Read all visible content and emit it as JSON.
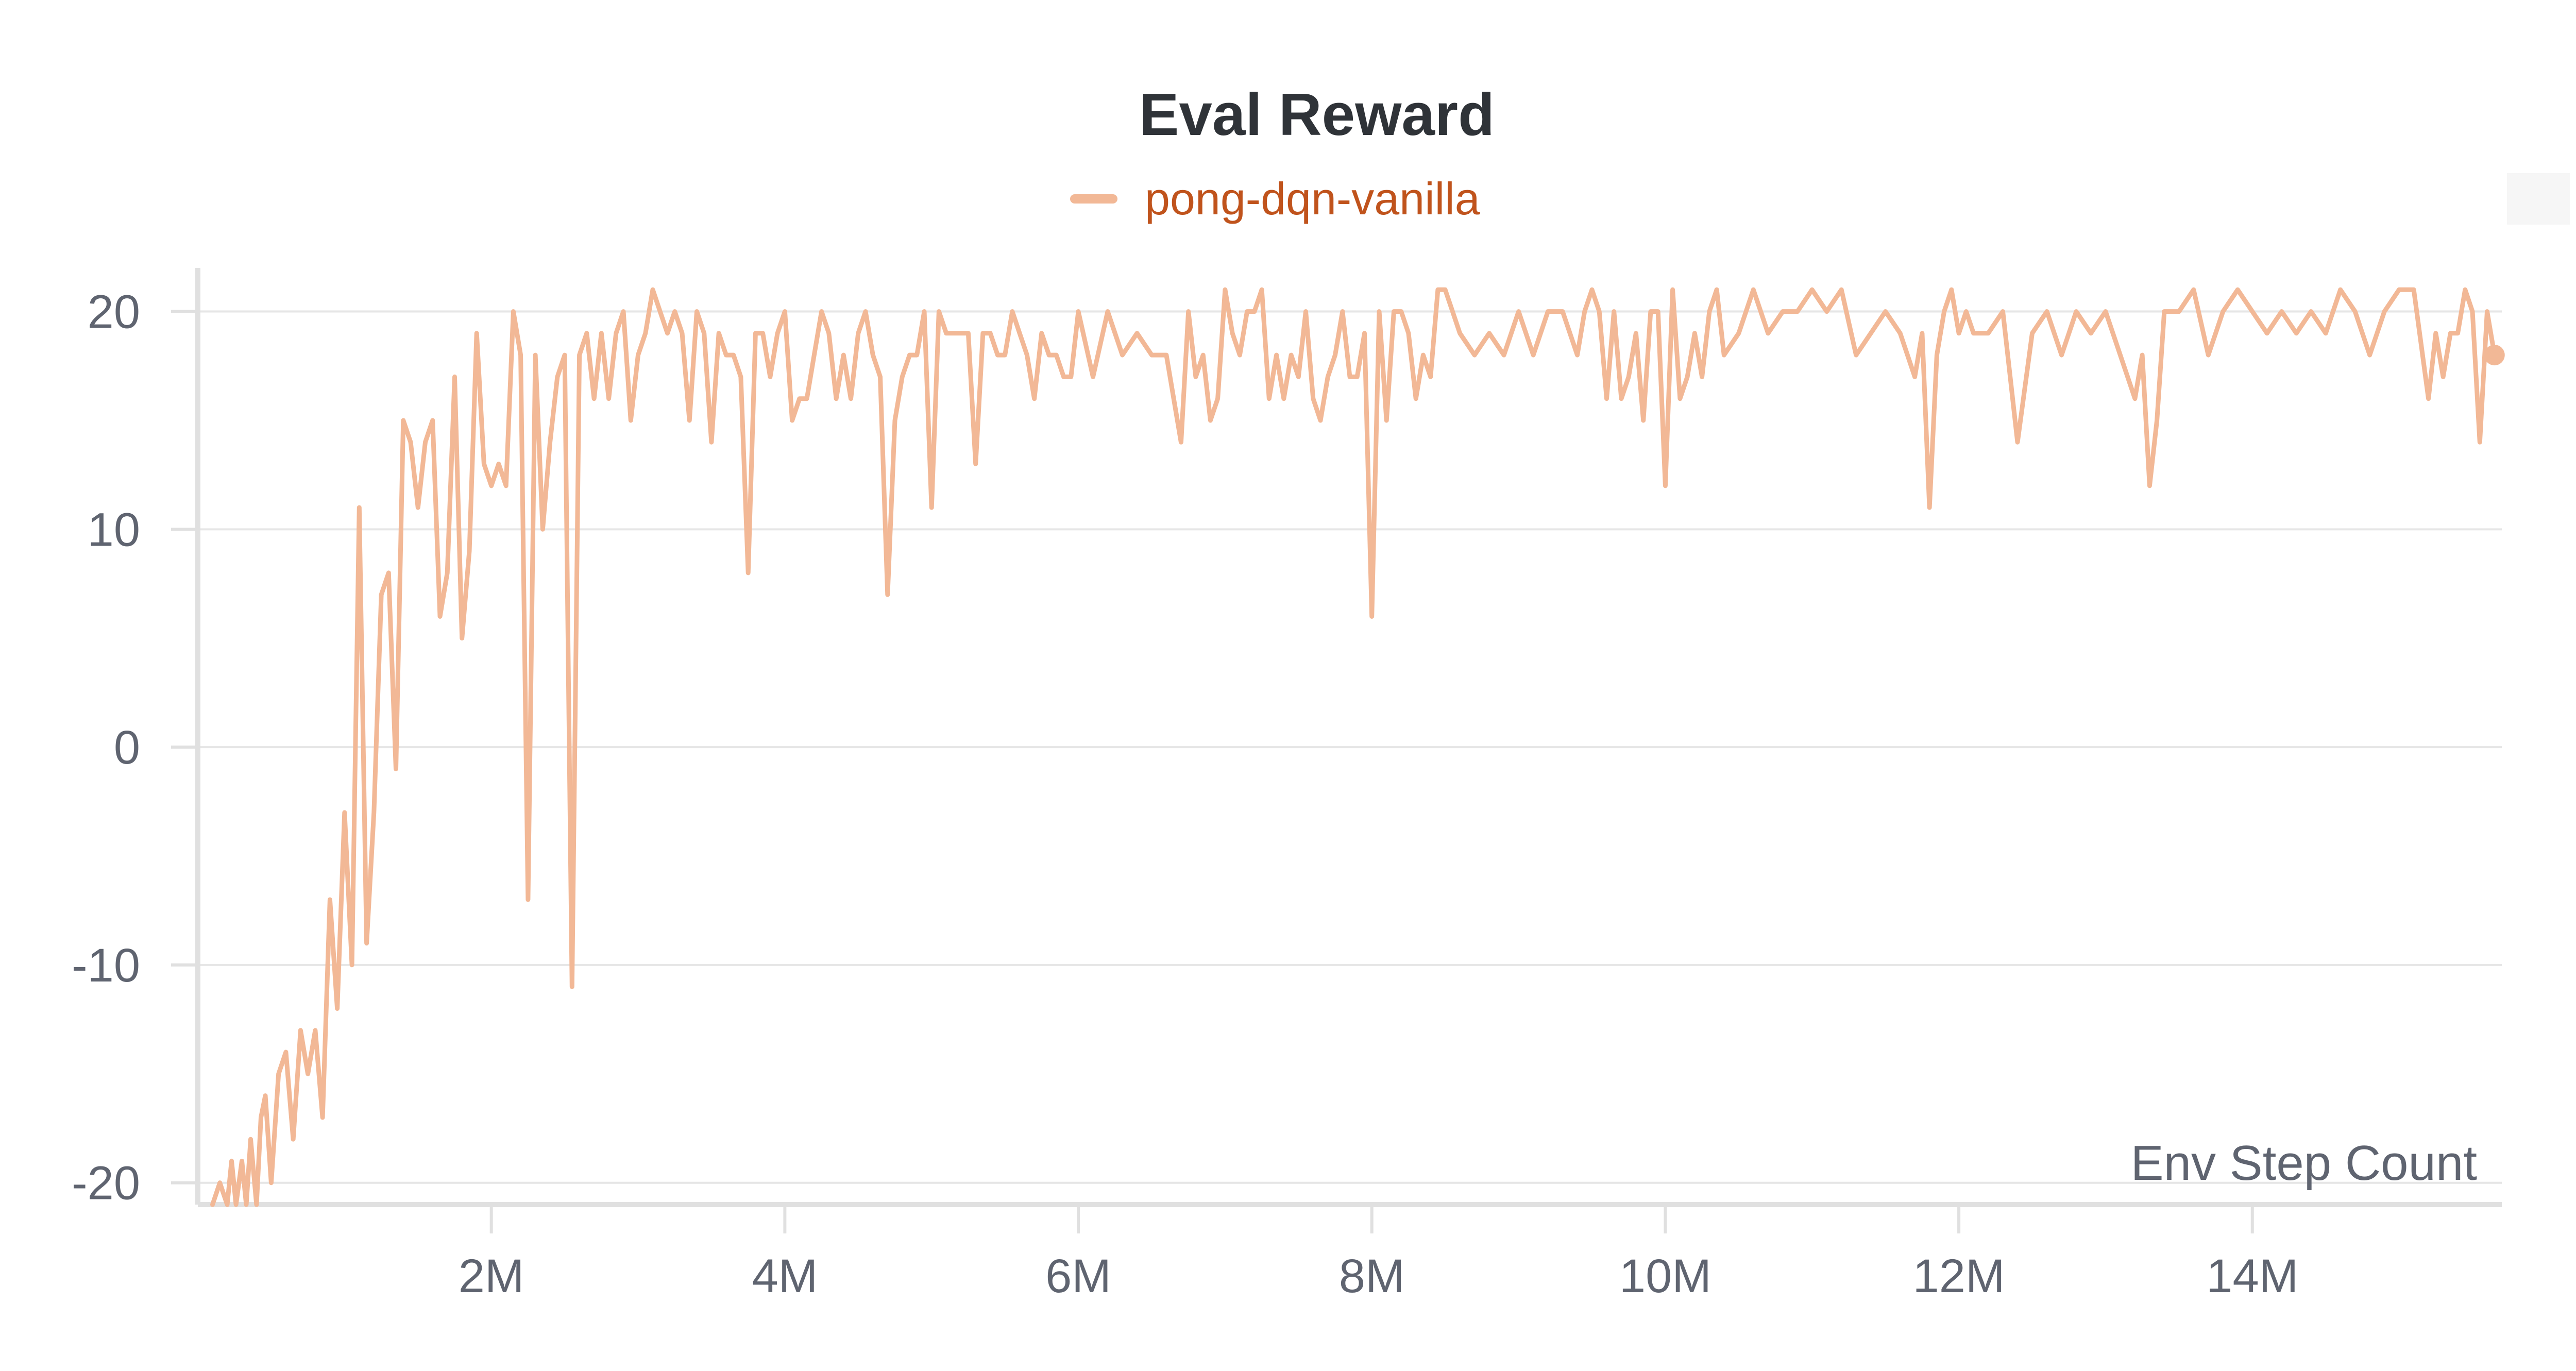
{
  "chart_data": {
    "type": "line",
    "title": "Eval Reward",
    "xlabel": "Env Step Count",
    "ylabel": "",
    "xlim": [
      0,
      15700000
    ],
    "ylim": [
      -21,
      22
    ],
    "x_ticks": [
      2000000,
      4000000,
      6000000,
      8000000,
      10000000,
      12000000,
      14000000
    ],
    "x_tick_labels": [
      "2M",
      "4M",
      "6M",
      "8M",
      "10M",
      "12M",
      "14M"
    ],
    "y_ticks": [
      -20,
      -10,
      0,
      10,
      20
    ],
    "y_tick_labels": [
      "-20",
      "-10",
      "0",
      "10",
      "20"
    ],
    "grid": true,
    "legend_position": "top-center",
    "colors": {
      "line": "#f2b896",
      "legend_text": "#c0531c",
      "grid": "#e6e6e6",
      "axis": "#e0e0e0"
    },
    "series": [
      {
        "name": "pong-dqn-vanilla",
        "x": [
          100000,
          150000,
          200000,
          230000,
          260000,
          300000,
          330000,
          360000,
          400000,
          430000,
          460000,
          500000,
          550000,
          600000,
          650000,
          700000,
          750000,
          800000,
          850000,
          900000,
          950000,
          1000000,
          1050000,
          1100000,
          1150000,
          1200000,
          1250000,
          1300000,
          1350000,
          1400000,
          1450000,
          1500000,
          1550000,
          1600000,
          1650000,
          1700000,
          1750000,
          1800000,
          1850000,
          1900000,
          1950000,
          2000000,
          2050000,
          2100000,
          2150000,
          2200000,
          2250000,
          2300000,
          2350000,
          2400000,
          2450000,
          2500000,
          2550000,
          2600000,
          2650000,
          2700000,
          2750000,
          2800000,
          2850000,
          2900000,
          2950000,
          3000000,
          3050000,
          3100000,
          3150000,
          3200000,
          3250000,
          3300000,
          3350000,
          3400000,
          3450000,
          3500000,
          3550000,
          3600000,
          3650000,
          3700000,
          3750000,
          3800000,
          3850000,
          3900000,
          3950000,
          4000000,
          4050000,
          4100000,
          4150000,
          4200000,
          4250000,
          4300000,
          4350000,
          4400000,
          4450000,
          4500000,
          4550000,
          4600000,
          4650000,
          4700000,
          4750000,
          4800000,
          4850000,
          4900000,
          4950000,
          5000000,
          5050000,
          5100000,
          5150000,
          5200000,
          5250000,
          5300000,
          5350000,
          5400000,
          5450000,
          5500000,
          5550000,
          5600000,
          5650000,
          5700000,
          5750000,
          5800000,
          5850000,
          5900000,
          5950000,
          6000000,
          6100000,
          6200000,
          6300000,
          6400000,
          6500000,
          6600000,
          6700000,
          6750000,
          6800000,
          6850000,
          6900000,
          6950000,
          7000000,
          7050000,
          7100000,
          7150000,
          7200000,
          7250000,
          7300000,
          7350000,
          7400000,
          7450000,
          7500000,
          7550000,
          7600000,
          7650000,
          7700000,
          7750000,
          7800000,
          7850000,
          7900000,
          7950000,
          8000000,
          8050000,
          8100000,
          8150000,
          8200000,
          8250000,
          8300000,
          8350000,
          8400000,
          8450000,
          8500000,
          8550000,
          8600000,
          8700000,
          8800000,
          8900000,
          9000000,
          9100000,
          9200000,
          9300000,
          9400000,
          9450000,
          9500000,
          9550000,
          9600000,
          9650000,
          9700000,
          9750000,
          9800000,
          9850000,
          9900000,
          9950000,
          10000000,
          10050000,
          10100000,
          10150000,
          10200000,
          10250000,
          10300000,
          10350000,
          10400000,
          10500000,
          10600000,
          10700000,
          10800000,
          10900000,
          11000000,
          11100000,
          11200000,
          11300000,
          11400000,
          11500000,
          11600000,
          11700000,
          11750000,
          11800000,
          11850000,
          11900000,
          11950000,
          12000000,
          12050000,
          12100000,
          12200000,
          12300000,
          12400000,
          12500000,
          12600000,
          12700000,
          12800000,
          12900000,
          13000000,
          13100000,
          13200000,
          13250000,
          13300000,
          13350000,
          13400000,
          13500000,
          13600000,
          13700000,
          13800000,
          13900000,
          14000000,
          14100000,
          14200000,
          14300000,
          14400000,
          14500000,
          14600000,
          14700000,
          14800000,
          14900000,
          15000000,
          15100000,
          15200000,
          15250000,
          15300000,
          15350000,
          15400000,
          15450000,
          15500000,
          15550000,
          15600000,
          15650000
        ],
        "y": [
          -21,
          -20,
          -21,
          -19,
          -21,
          -19,
          -21,
          -18,
          -21,
          -17,
          -16,
          -20,
          -15,
          -14,
          -18,
          -13,
          -15,
          -13,
          -17,
          -7,
          -12,
          -3,
          -10,
          11,
          -9,
          -3,
          7,
          8,
          -1,
          15,
          14,
          11,
          14,
          15,
          6,
          8,
          17,
          5,
          9,
          19,
          13,
          12,
          13,
          12,
          20,
          18,
          -7,
          18,
          10,
          14,
          17,
          18,
          -11,
          18,
          19,
          16,
          19,
          16,
          19,
          20,
          15,
          18,
          19,
          21,
          20,
          19,
          20,
          19,
          15,
          20,
          19,
          14,
          19,
          18,
          18,
          17,
          8,
          19,
          19,
          17,
          19,
          20,
          15,
          16,
          16,
          18,
          20,
          19,
          16,
          18,
          16,
          19,
          20,
          18,
          17,
          7,
          15,
          17,
          18,
          18,
          20,
          11,
          20,
          19,
          19,
          19,
          19,
          13,
          19,
          19,
          18,
          18,
          20,
          19,
          18,
          16,
          19,
          18,
          18,
          17,
          17,
          20,
          17,
          20,
          18,
          19,
          18,
          18,
          14,
          20,
          17,
          18,
          15,
          16,
          21,
          19,
          18,
          20,
          20,
          21,
          16,
          18,
          16,
          18,
          17,
          20,
          16,
          15,
          17,
          18,
          20,
          17,
          17,
          19,
          6,
          20,
          15,
          20,
          20,
          19,
          16,
          18,
          17,
          21,
          21,
          20,
          19,
          18,
          19,
          18,
          20,
          18,
          20,
          20,
          18,
          20,
          21,
          20,
          16,
          20,
          16,
          17,
          19,
          15,
          20,
          20,
          12,
          21,
          16,
          17,
          19,
          17,
          20,
          21,
          18,
          19,
          21,
          19,
          20,
          20,
          21,
          20,
          21,
          18,
          19,
          20,
          19,
          17,
          19,
          11,
          18,
          20,
          21,
          19,
          20,
          19,
          19,
          20,
          14,
          19,
          20,
          18,
          20,
          19,
          20,
          18,
          16,
          18,
          12,
          15,
          20,
          20,
          21,
          18,
          20,
          21,
          20,
          19,
          20,
          19,
          20,
          19,
          21,
          20,
          18,
          20,
          21,
          21,
          16,
          19,
          17,
          19,
          19,
          21,
          20,
          14,
          20,
          18
        ]
      }
    ]
  }
}
